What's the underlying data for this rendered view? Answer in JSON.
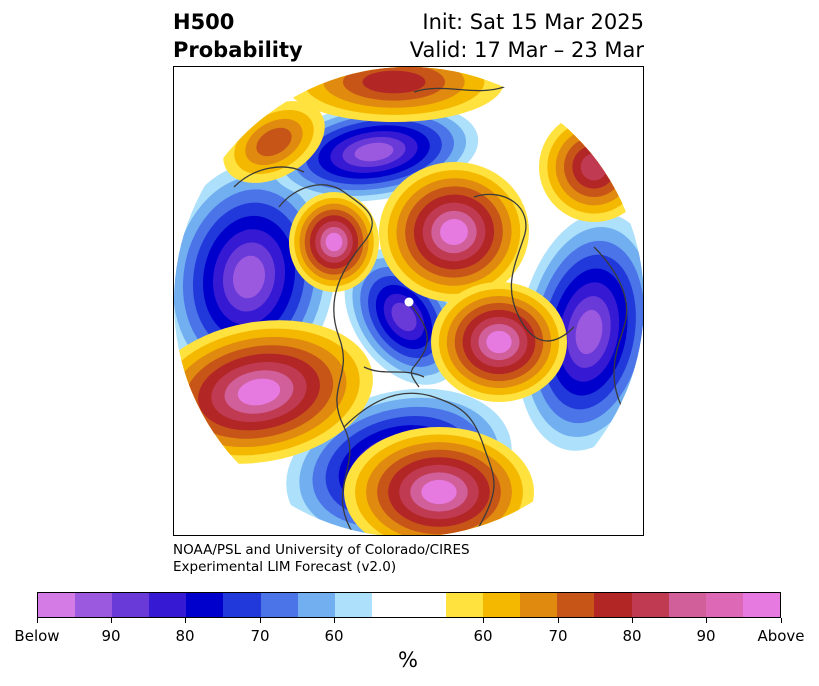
{
  "title": {
    "left_line1": "H500",
    "left_line2": "Probability",
    "right_line1": "Init: Sat 15 Mar 2025",
    "right_line2": "Valid: 17 Mar – 23 Mar"
  },
  "credit": {
    "line1": "NOAA/PSL and University of Colorado/CIRES",
    "line2": "Experimental LIM Forecast (v2.0)"
  },
  "colorbar": {
    "colors": [
      "#d57be6",
      "#9b59e0",
      "#6a3ad8",
      "#3519d3",
      "#0000cc",
      "#2139da",
      "#4a74e8",
      "#72aff0",
      "#ade0fa",
      "#ffffff",
      "#ffffff",
      "#ffe23e",
      "#f5b800",
      "#e08a10",
      "#c85518",
      "#b22626",
      "#c03a52",
      "#d05f9a",
      "#dd68b6",
      "#e67ae0"
    ],
    "tick_labels": [
      "Below",
      "90",
      "80",
      "70",
      "60",
      "60",
      "70",
      "80",
      "90",
      "Above"
    ],
    "units": "%"
  },
  "map": {
    "projection": "polar-stereographic-northern-hemisphere",
    "above_colors": [
      "#ffe23e",
      "#f5b800",
      "#e08a10",
      "#c85518",
      "#b22626",
      "#c03a52",
      "#d05f9a",
      "#e67ae0"
    ],
    "below_colors": [
      "#ade0fa",
      "#72aff0",
      "#4a74e8",
      "#2139da",
      "#0000cc",
      "#3519d3",
      "#6a3ad8",
      "#9b59e0"
    ]
  }
}
